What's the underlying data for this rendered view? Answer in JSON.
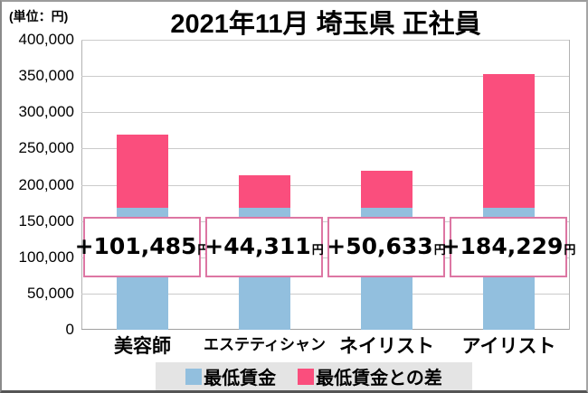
{
  "chart_data": {
    "type": "bar",
    "stacked": true,
    "title": "2021年11月 埼玉県 正社員",
    "unit_label": "(単位：円)",
    "categories": [
      "美容師",
      "エステティシャン",
      "ネイリスト",
      "アイリスト"
    ],
    "series": [
      {
        "name": "最低賃金",
        "color": "#92bfde",
        "values": [
          168256,
          168256,
          168256,
          168256
        ],
        "note": "not labeled on chart; estimated from bar heights vs gridlines"
      },
      {
        "name": "最低賃金との差",
        "color": "#fa4e7d",
        "values": [
          101485,
          44311,
          50633,
          184229
        ]
      }
    ],
    "totals": [
      269741,
      212567,
      218889,
      352485
    ],
    "diff_labels": [
      "+101,485",
      "+44,311",
      "+50,633",
      "+184,229"
    ],
    "diff_label_suffix": "円",
    "ylim": [
      0,
      400000
    ],
    "ytick_interval": 50000,
    "yticks": [
      "400,000",
      "350,000",
      "300,000",
      "250,000",
      "200,000",
      "150,000",
      "100,000",
      "50,000",
      "0"
    ],
    "grid": true,
    "legend_position": "bottom",
    "colors": {
      "grid": "#cbcbcb",
      "diff_box_border": "#dd76a3",
      "legend_background": "#e4e4e4"
    }
  }
}
